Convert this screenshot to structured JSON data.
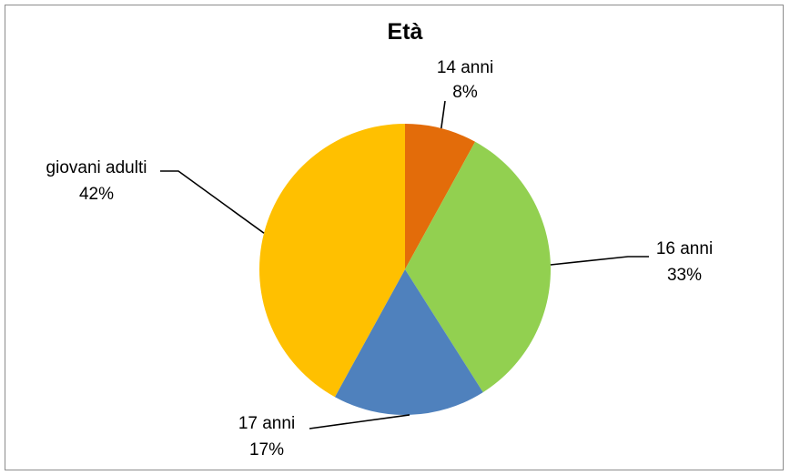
{
  "chart_data": {
    "type": "pie",
    "title": "Età",
    "categories": [
      "14 anni",
      "16 anni",
      "17 anni",
      "giovani adulti"
    ],
    "values": [
      8,
      33,
      17,
      42
    ],
    "value_labels": [
      "8%",
      "33%",
      "17%",
      "42%"
    ],
    "colors": [
      "#E36C0A",
      "#92D050",
      "#4F81BD",
      "#FFC000"
    ],
    "start_angle": "12 o'clock",
    "direction": "clockwise",
    "legend": "none",
    "data_labels": "outside with leader lines"
  }
}
